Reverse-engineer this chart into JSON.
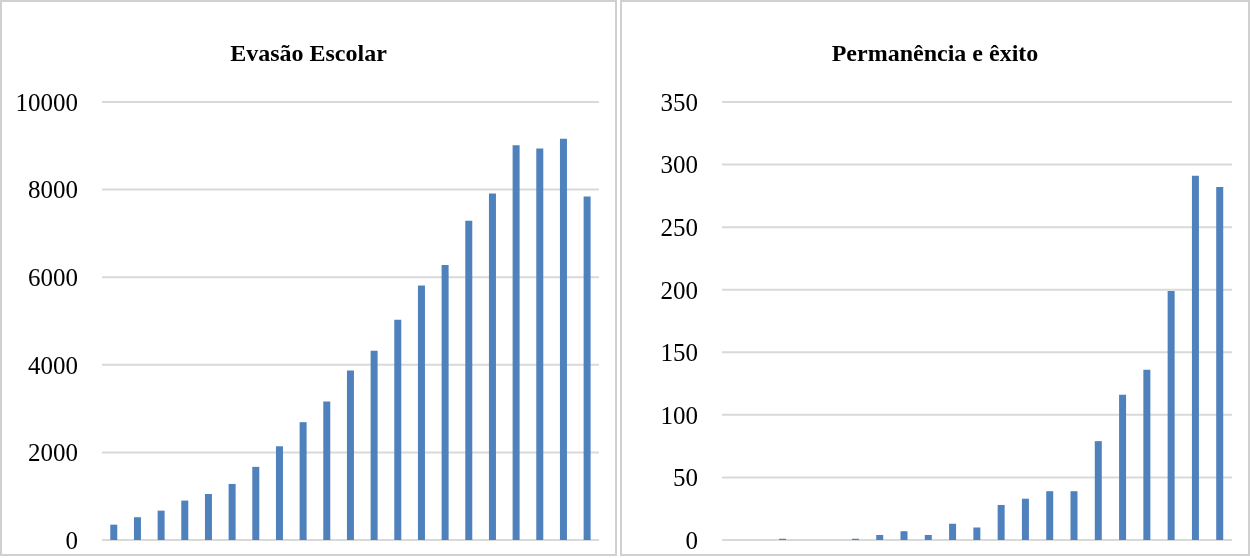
{
  "chart_data": [
    {
      "type": "bar",
      "title": "Evasão Escolar",
      "categories": [
        null,
        null,
        null,
        null,
        null,
        null,
        null,
        null,
        null,
        null,
        null,
        null,
        null,
        null,
        null,
        null,
        null,
        null,
        null,
        null,
        null
      ],
      "values": [
        350,
        520,
        670,
        900,
        1050,
        1280,
        1670,
        2140,
        2690,
        3160,
        3870,
        4320,
        5030,
        5810,
        6280,
        7290,
        7910,
        9010,
        8940,
        9160,
        7840
      ],
      "color": "#4f81bd",
      "ylim": [
        0,
        10000
      ],
      "yticks": [
        0,
        2000,
        4000,
        6000,
        8000,
        10000
      ],
      "grid": "y",
      "tick_labels": "y"
    },
    {
      "type": "bar",
      "title": "Permanência e êxito",
      "categories": [
        null,
        null,
        null,
        null,
        null,
        null,
        null,
        null,
        null,
        null,
        null,
        null,
        null,
        null,
        null,
        null,
        null,
        null,
        null,
        null,
        null
      ],
      "values": [
        0,
        0,
        1,
        0,
        0,
        1,
        4,
        7,
        4,
        13,
        10,
        28,
        33,
        39,
        39,
        79,
        116,
        136,
        199,
        291,
        282
      ],
      "color": "#4f81bd",
      "ylim": [
        0,
        350
      ],
      "yticks": [
        0,
        50,
        100,
        150,
        200,
        250,
        300,
        350
      ],
      "grid": "y",
      "tick_labels": "y"
    }
  ]
}
